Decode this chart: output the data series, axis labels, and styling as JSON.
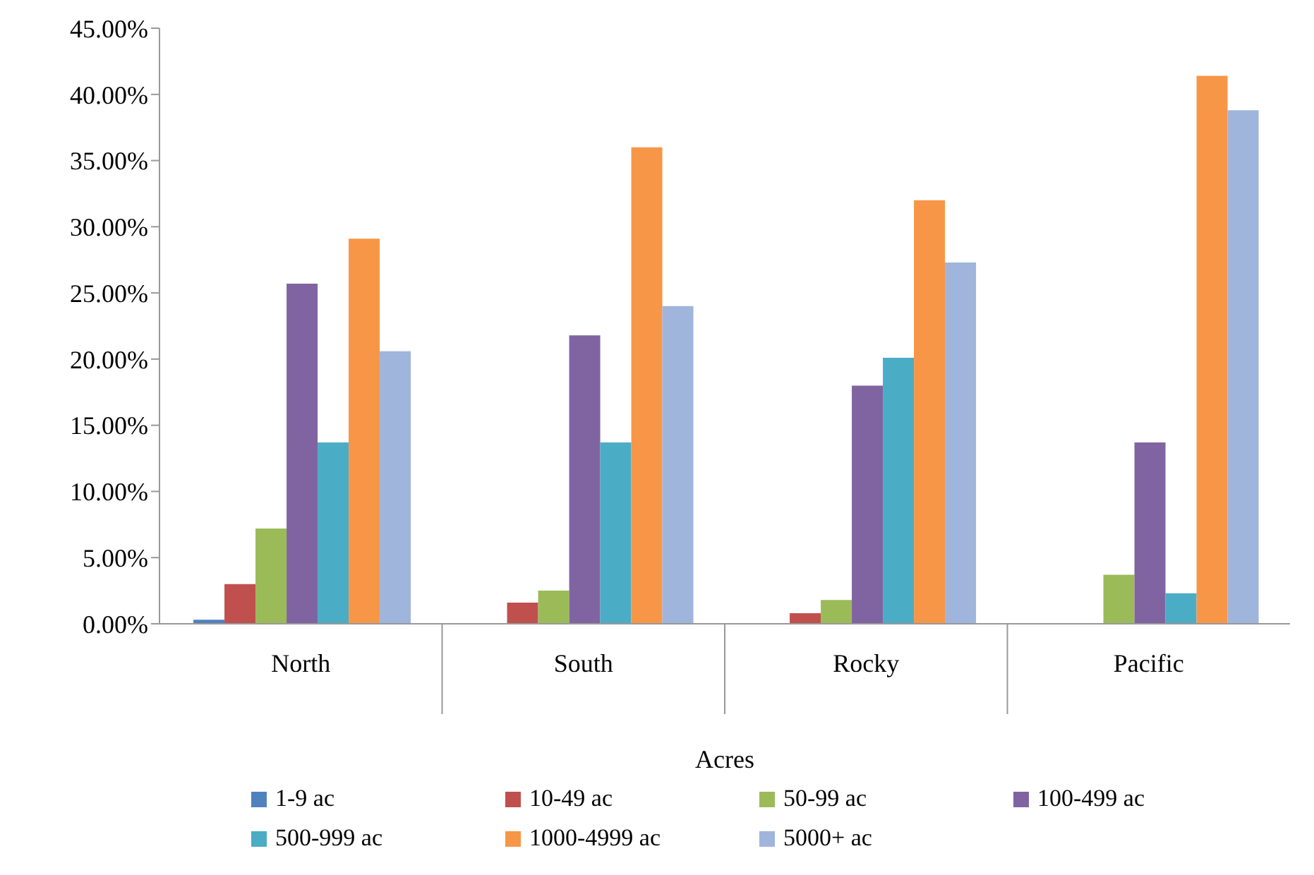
{
  "chart_data": {
    "type": "bar",
    "xlabel": "Acres",
    "categories": [
      "North",
      "South",
      "Rocky",
      "Pacific"
    ],
    "series": [
      {
        "name": "1-9 ac",
        "color": "#4f81bd",
        "values": [
          0.3,
          0,
          0,
          0
        ]
      },
      {
        "name": "10-49 ac",
        "color": "#c0504d",
        "values": [
          3.0,
          1.6,
          0.8,
          0
        ]
      },
      {
        "name": "50-99 ac",
        "color": "#9bbb59",
        "values": [
          7.2,
          2.5,
          1.8,
          3.7
        ]
      },
      {
        "name": "100-499 ac",
        "color": "#8064a2",
        "values": [
          25.7,
          21.8,
          18.0,
          13.7
        ]
      },
      {
        "name": "500-999 ac",
        "color": "#4bacc6",
        "values": [
          13.7,
          13.7,
          20.1,
          2.3
        ]
      },
      {
        "name": "1000-4999 ac",
        "color": "#f79646",
        "values": [
          29.1,
          36.0,
          32.0,
          41.4
        ]
      },
      {
        "name": "5000+ ac",
        "color": "#a0b5dc",
        "values": [
          20.6,
          24.0,
          27.3,
          38.8
        ]
      }
    ],
    "ylim": [
      0,
      45
    ],
    "yticks": [
      {
        "value": 0,
        "label": "0.00%"
      },
      {
        "value": 5,
        "label": "5.00%"
      },
      {
        "value": 10,
        "label": "10.00%"
      },
      {
        "value": 15,
        "label": "15.00%"
      },
      {
        "value": 20,
        "label": "20.00%"
      },
      {
        "value": 25,
        "label": "25.00%"
      },
      {
        "value": 30,
        "label": "30.00%"
      },
      {
        "value": 35,
        "label": "35.00%"
      },
      {
        "value": 40,
        "label": "40.00%"
      },
      {
        "value": 45,
        "label": "45.00%"
      }
    ],
    "grid": false,
    "legend": "bottom"
  }
}
